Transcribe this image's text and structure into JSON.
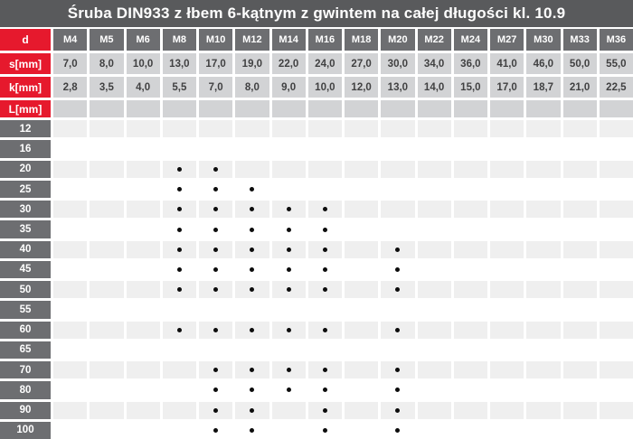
{
  "title": "Śruba DIN933 z łbem 6-kątnym z gwintem na całej długości kl. 10.9",
  "table": {
    "corner_label": "d",
    "diameters": [
      "M4",
      "M5",
      "M6",
      "M8",
      "M10",
      "M12",
      "M14",
      "M16",
      "M18",
      "M20",
      "M22",
      "M24",
      "M27",
      "M30",
      "M33",
      "M36"
    ],
    "s_row": {
      "label": "s[mm]",
      "values": [
        "7,0",
        "8,0",
        "10,0",
        "13,0",
        "17,0",
        "19,0",
        "22,0",
        "24,0",
        "27,0",
        "30,0",
        "34,0",
        "36,0",
        "41,0",
        "46,0",
        "50,0",
        "55,0"
      ]
    },
    "k_row": {
      "label": "k[mm]",
      "values": [
        "2,8",
        "3,5",
        "4,0",
        "5,5",
        "7,0",
        "8,0",
        "9,0",
        "10,0",
        "12,0",
        "13,0",
        "14,0",
        "15,0",
        "17,0",
        "18,7",
        "21,0",
        "22,5"
      ]
    },
    "l_row": {
      "label": "L[mm]"
    },
    "lengths": [
      {
        "label": "12",
        "available": []
      },
      {
        "label": "16",
        "available": []
      },
      {
        "label": "20",
        "available": [
          "M8",
          "M10"
        ]
      },
      {
        "label": "25",
        "available": [
          "M8",
          "M10",
          "M12"
        ]
      },
      {
        "label": "30",
        "available": [
          "M8",
          "M10",
          "M12",
          "M14",
          "M16"
        ]
      },
      {
        "label": "35",
        "available": [
          "M8",
          "M10",
          "M12",
          "M14",
          "M16"
        ]
      },
      {
        "label": "40",
        "available": [
          "M8",
          "M10",
          "M12",
          "M14",
          "M16",
          "M20"
        ]
      },
      {
        "label": "45",
        "available": [
          "M8",
          "M10",
          "M12",
          "M14",
          "M16",
          "M20"
        ]
      },
      {
        "label": "50",
        "available": [
          "M8",
          "M10",
          "M12",
          "M14",
          "M16",
          "M20"
        ]
      },
      {
        "label": "55",
        "available": []
      },
      {
        "label": "60",
        "available": [
          "M8",
          "M10",
          "M12",
          "M14",
          "M16",
          "M20"
        ]
      },
      {
        "label": "65",
        "available": []
      },
      {
        "label": "70",
        "available": [
          "M10",
          "M12",
          "M14",
          "M16",
          "M20"
        ]
      },
      {
        "label": "80",
        "available": [
          "M10",
          "M12",
          "M14",
          "M16",
          "M20"
        ]
      },
      {
        "label": "90",
        "available": [
          "M10",
          "M12",
          "M16",
          "M20"
        ]
      },
      {
        "label": "100",
        "available": [
          "M10",
          "M12",
          "M16",
          "M20"
        ]
      }
    ],
    "availability_marker": "•"
  },
  "colors": {
    "title_bg": "#595a5c",
    "header_gray": "#6d6e71",
    "accent_red": "#e6192d",
    "cell_gray": "#d2d3d5",
    "row_shade": "#efefef",
    "row_white": "#ffffff",
    "value_text": "#414142",
    "dot": "#0d0d0d",
    "text_white": "#ffffff"
  }
}
